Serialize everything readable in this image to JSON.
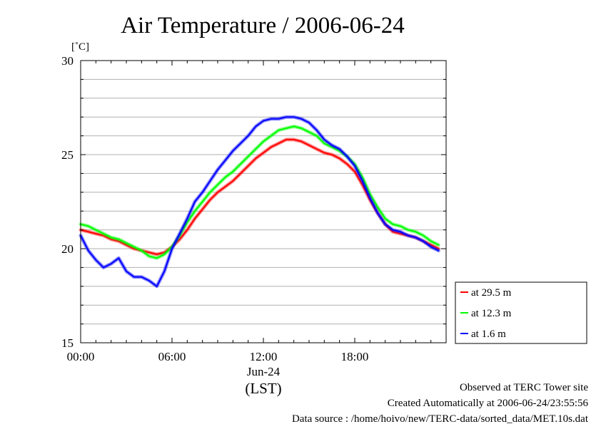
{
  "chart_data": {
    "type": "line",
    "title": "Air Temperature / 2006-06-24",
    "ylabel": "[˚C]",
    "xlabel": "(LST)",
    "ylim": [
      15,
      30
    ],
    "xlim": [
      0,
      24
    ],
    "yticks": [
      15,
      20,
      25,
      30
    ],
    "xticks": [
      {
        "value": 0,
        "label": "00:00"
      },
      {
        "value": 6,
        "label": "06:00"
      },
      {
        "value": 12,
        "label": "12:00"
      },
      {
        "value": 18,
        "label": "18:00"
      }
    ],
    "xdate_label": "Jun-24",
    "grid": true,
    "legend_position": "right-bottom outside",
    "series": [
      {
        "name": "at 29.5 m",
        "color": "#ff0000",
        "x": [
          0,
          0.5,
          1,
          1.5,
          2,
          2.5,
          3,
          3.5,
          4,
          4.5,
          5,
          5.5,
          6,
          6.5,
          7,
          7.5,
          8,
          8.5,
          9,
          9.5,
          10,
          10.5,
          11,
          11.5,
          12,
          12.5,
          13,
          13.5,
          14,
          14.5,
          15,
          15.5,
          16,
          16.5,
          17,
          17.5,
          18,
          18.5,
          19,
          19.5,
          20,
          20.5,
          21,
          21.5,
          22,
          22.5,
          23,
          23.5
        ],
        "y": [
          21.0,
          20.9,
          20.8,
          20.7,
          20.5,
          20.4,
          20.2,
          20.0,
          19.9,
          19.8,
          19.7,
          19.8,
          20.1,
          20.5,
          21.0,
          21.6,
          22.1,
          22.6,
          23.0,
          23.3,
          23.6,
          24.0,
          24.4,
          24.8,
          25.1,
          25.4,
          25.6,
          25.8,
          25.8,
          25.7,
          25.5,
          25.3,
          25.1,
          25.0,
          24.8,
          24.5,
          24.1,
          23.4,
          22.6,
          21.9,
          21.3,
          20.9,
          20.8,
          20.7,
          20.6,
          20.4,
          20.2,
          20.0
        ]
      },
      {
        "name": "at 12.3 m",
        "color": "#00ff00",
        "x": [
          0,
          0.5,
          1,
          1.5,
          2,
          2.5,
          3,
          3.5,
          4,
          4.5,
          5,
          5.5,
          6,
          6.5,
          7,
          7.5,
          8,
          8.5,
          9,
          9.5,
          10,
          10.5,
          11,
          11.5,
          12,
          12.5,
          13,
          13.5,
          14,
          14.5,
          15,
          15.5,
          16,
          16.5,
          17,
          17.5,
          18,
          18.5,
          19,
          19.5,
          20,
          20.5,
          21,
          21.5,
          22,
          22.5,
          23,
          23.5
        ],
        "y": [
          21.3,
          21.2,
          21.0,
          20.8,
          20.6,
          20.5,
          20.3,
          20.1,
          19.9,
          19.6,
          19.5,
          19.7,
          20.1,
          20.7,
          21.4,
          22.0,
          22.5,
          23.0,
          23.4,
          23.8,
          24.1,
          24.5,
          24.9,
          25.3,
          25.7,
          26.0,
          26.3,
          26.4,
          26.5,
          26.4,
          26.2,
          26.0,
          25.6,
          25.4,
          25.2,
          24.9,
          24.5,
          23.8,
          22.9,
          22.2,
          21.6,
          21.3,
          21.2,
          21.0,
          20.9,
          20.7,
          20.4,
          20.2
        ]
      },
      {
        "name": "at 1.6 m",
        "color": "#0000ff",
        "x": [
          0,
          0.5,
          1,
          1.5,
          2,
          2.5,
          3,
          3.5,
          4,
          4.5,
          5,
          5.5,
          6,
          6.5,
          7,
          7.5,
          8,
          8.5,
          9,
          9.5,
          10,
          10.5,
          11,
          11.5,
          12,
          12.5,
          13,
          13.5,
          14,
          14.5,
          15,
          15.5,
          16,
          16.5,
          17,
          17.5,
          18,
          18.5,
          19,
          19.5,
          20,
          20.5,
          21,
          21.5,
          22,
          22.5,
          23,
          23.5
        ],
        "y": [
          20.7,
          19.9,
          19.4,
          19.0,
          19.2,
          19.5,
          18.8,
          18.5,
          18.5,
          18.3,
          18.0,
          18.8,
          20.0,
          20.8,
          21.6,
          22.5,
          23.0,
          23.6,
          24.2,
          24.7,
          25.2,
          25.6,
          26.0,
          26.5,
          26.8,
          26.9,
          26.9,
          27.0,
          27.0,
          26.9,
          26.7,
          26.3,
          25.8,
          25.5,
          25.3,
          24.9,
          24.4,
          23.6,
          22.7,
          21.9,
          21.3,
          21.0,
          20.9,
          20.7,
          20.6,
          20.4,
          20.1,
          19.9
        ]
      }
    ]
  },
  "footer": {
    "line1": "Observed at TERC Tower site",
    "line2": "Created Automatically at 2006-06-24/23:55:56",
    "line3": "Data source : /home/hoivo/new/TERC-data/sorted_data/MET.10s.dat"
  }
}
